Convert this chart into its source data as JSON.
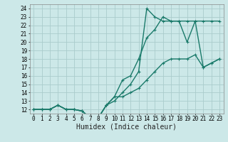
{
  "title": "",
  "xlabel": "Humidex (Indice chaleur)",
  "bg_color": "#cce8e8",
  "grid_color": "#aacccc",
  "line_color": "#1a7a6a",
  "xlim": [
    -0.5,
    23.5
  ],
  "ylim": [
    11.5,
    24.5
  ],
  "xticks": [
    0,
    1,
    2,
    3,
    4,
    5,
    6,
    7,
    8,
    9,
    10,
    11,
    12,
    13,
    14,
    15,
    16,
    17,
    18,
    19,
    20,
    21,
    22,
    23
  ],
  "yticks": [
    12,
    13,
    14,
    15,
    16,
    17,
    18,
    19,
    20,
    21,
    22,
    23,
    24
  ],
  "line1_x": [
    0,
    1,
    2,
    3,
    4,
    5,
    6,
    7,
    8,
    9,
    10,
    11,
    12,
    13,
    14,
    15,
    16,
    17,
    18,
    19,
    20,
    21,
    22,
    23
  ],
  "line1_y": [
    12,
    12,
    12,
    12.5,
    12,
    12,
    11.8,
    11,
    11,
    12.5,
    13.5,
    15.5,
    16,
    18,
    20.5,
    21.5,
    23,
    22.5,
    22.5,
    22.5,
    22.5,
    22.5,
    22.5,
    22.5
  ],
  "line2_x": [
    0,
    1,
    2,
    3,
    4,
    5,
    6,
    7,
    8,
    9,
    10,
    11,
    12,
    13,
    14,
    15,
    16,
    17,
    18,
    19,
    20,
    21,
    22,
    23
  ],
  "line2_y": [
    12,
    12,
    12,
    12.5,
    12,
    12,
    11.8,
    11,
    11,
    12.5,
    13,
    14,
    15,
    16.5,
    24,
    23,
    22.5,
    22.5,
    22.5,
    20,
    22.5,
    17,
    17.5,
    18
  ],
  "line3_x": [
    0,
    1,
    2,
    3,
    4,
    5,
    6,
    7,
    8,
    9,
    10,
    11,
    12,
    13,
    14,
    15,
    16,
    17,
    18,
    19,
    20,
    21,
    22,
    23
  ],
  "line3_y": [
    12,
    12,
    12,
    12.5,
    12,
    12,
    11.8,
    11,
    11,
    12.5,
    13.5,
    13.5,
    14,
    14.5,
    15.5,
    16.5,
    17.5,
    18,
    18,
    18,
    18.5,
    17,
    17.5,
    18
  ],
  "marker_size": 3,
  "line_width": 1.0,
  "xlabel_fontsize": 7,
  "tick_fontsize": 5.5
}
